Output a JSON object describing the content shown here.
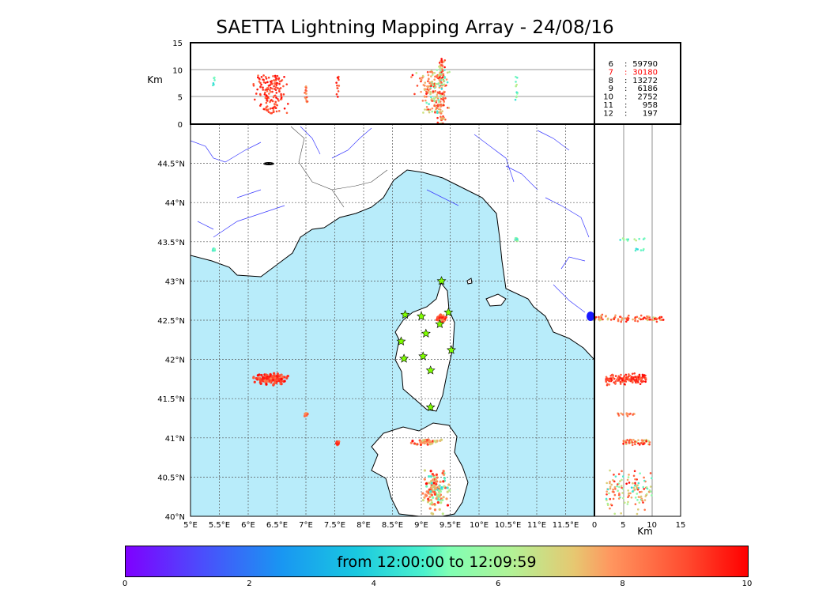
{
  "title": "SAETTA Lightning Mapping Array - 24/08/16",
  "colors": {
    "sea": "#b8ecfa",
    "land": "#ffffff",
    "river": "#3a3aff",
    "grid": "#555555",
    "star_fill": "#7fff00",
    "highlight": "#ff0000"
  },
  "colorbar": {
    "label": "from 12:00:00 to 12:09:59",
    "ticks": [
      "0",
      "2",
      "4",
      "6",
      "8",
      "10"
    ],
    "range": [
      0,
      10
    ]
  },
  "chart_data": {
    "type": "scatter",
    "map": {
      "lon_range": [
        5,
        12
      ],
      "lat_range": [
        40,
        45
      ],
      "lon_ticks": [
        "5°E",
        "5.5°E",
        "6°E",
        "6.5°E",
        "7°E",
        "7.5°E",
        "8°E",
        "8.5°E",
        "9°E",
        "9.5°E",
        "10°E",
        "10.5°E",
        "11°E",
        "11.5°E"
      ],
      "lat_ticks": [
        "40°N",
        "40.5°N",
        "41°N",
        "41.5°N",
        "42°N",
        "42.5°N",
        "43°N",
        "43.5°N",
        "44°N",
        "44.5°N"
      ],
      "grid": true
    },
    "altitude_axis": {
      "label": "Km",
      "range": [
        0,
        15
      ],
      "top_ticks": [
        "0",
        "5",
        "10",
        "15"
      ],
      "side_ticks": [
        "0",
        "5",
        "10",
        "15"
      ]
    },
    "stations": [
      {
        "lon": 9.35,
        "lat": 43.0
      },
      {
        "lon": 8.72,
        "lat": 42.57
      },
      {
        "lon": 9.0,
        "lat": 42.55
      },
      {
        "lon": 9.47,
        "lat": 42.6
      },
      {
        "lon": 9.32,
        "lat": 42.45
      },
      {
        "lon": 9.08,
        "lat": 42.33
      },
      {
        "lon": 8.65,
        "lat": 42.23
      },
      {
        "lon": 9.52,
        "lat": 42.12
      },
      {
        "lon": 9.03,
        "lat": 42.04
      },
      {
        "lon": 8.7,
        "lat": 42.01
      },
      {
        "lon": 9.16,
        "lat": 41.86
      },
      {
        "lon": 9.16,
        "lat": 41.39
      }
    ],
    "clusters": [
      {
        "lon": 6.4,
        "lat": 41.75,
        "dlon": 0.35,
        "dlat": 0.09,
        "alt": [
          2,
          9
        ],
        "n": 150,
        "time": "8-10"
      },
      {
        "lon": 9.35,
        "lat": 42.52,
        "dlon": 0.1,
        "dlat": 0.06,
        "alt": [
          0,
          12
        ],
        "n": 90,
        "time": "6-10"
      },
      {
        "lon": 9.25,
        "lat": 40.33,
        "dlon": 0.3,
        "dlat": 0.35,
        "alt": [
          2,
          10
        ],
        "n": 130,
        "time": "4-10"
      },
      {
        "lon": 9.1,
        "lat": 40.95,
        "dlon": 0.35,
        "dlat": 0.05,
        "alt": [
          5,
          10
        ],
        "n": 40,
        "time": "6-10"
      },
      {
        "lon": 7.0,
        "lat": 41.3,
        "dlon": 0.04,
        "dlat": 0.03,
        "alt": [
          4,
          7
        ],
        "n": 15,
        "time": "7-9"
      },
      {
        "lon": 7.55,
        "lat": 40.93,
        "dlon": 0.04,
        "dlat": 0.03,
        "alt": [
          5,
          9
        ],
        "n": 12,
        "time": "8-10"
      },
      {
        "lon": 10.65,
        "lat": 43.53,
        "dlon": 0.03,
        "dlat": 0.03,
        "alt": [
          4,
          9
        ],
        "n": 12,
        "time": "4-6"
      },
      {
        "lon": 5.4,
        "lat": 43.4,
        "dlon": 0.04,
        "dlat": 0.02,
        "alt": [
          7,
          9
        ],
        "n": 6,
        "time": "4-5"
      }
    ],
    "counts": [
      {
        "label": "6",
        "value": "59790"
      },
      {
        "label": "7",
        "value": "30180",
        "highlight": true
      },
      {
        "label": "8",
        "value": "13272"
      },
      {
        "label": "9",
        "value": "6186"
      },
      {
        "label": "10",
        "value": "2752"
      },
      {
        "label": "11",
        "value": "958"
      },
      {
        "label": "12",
        "value": "197"
      }
    ]
  }
}
